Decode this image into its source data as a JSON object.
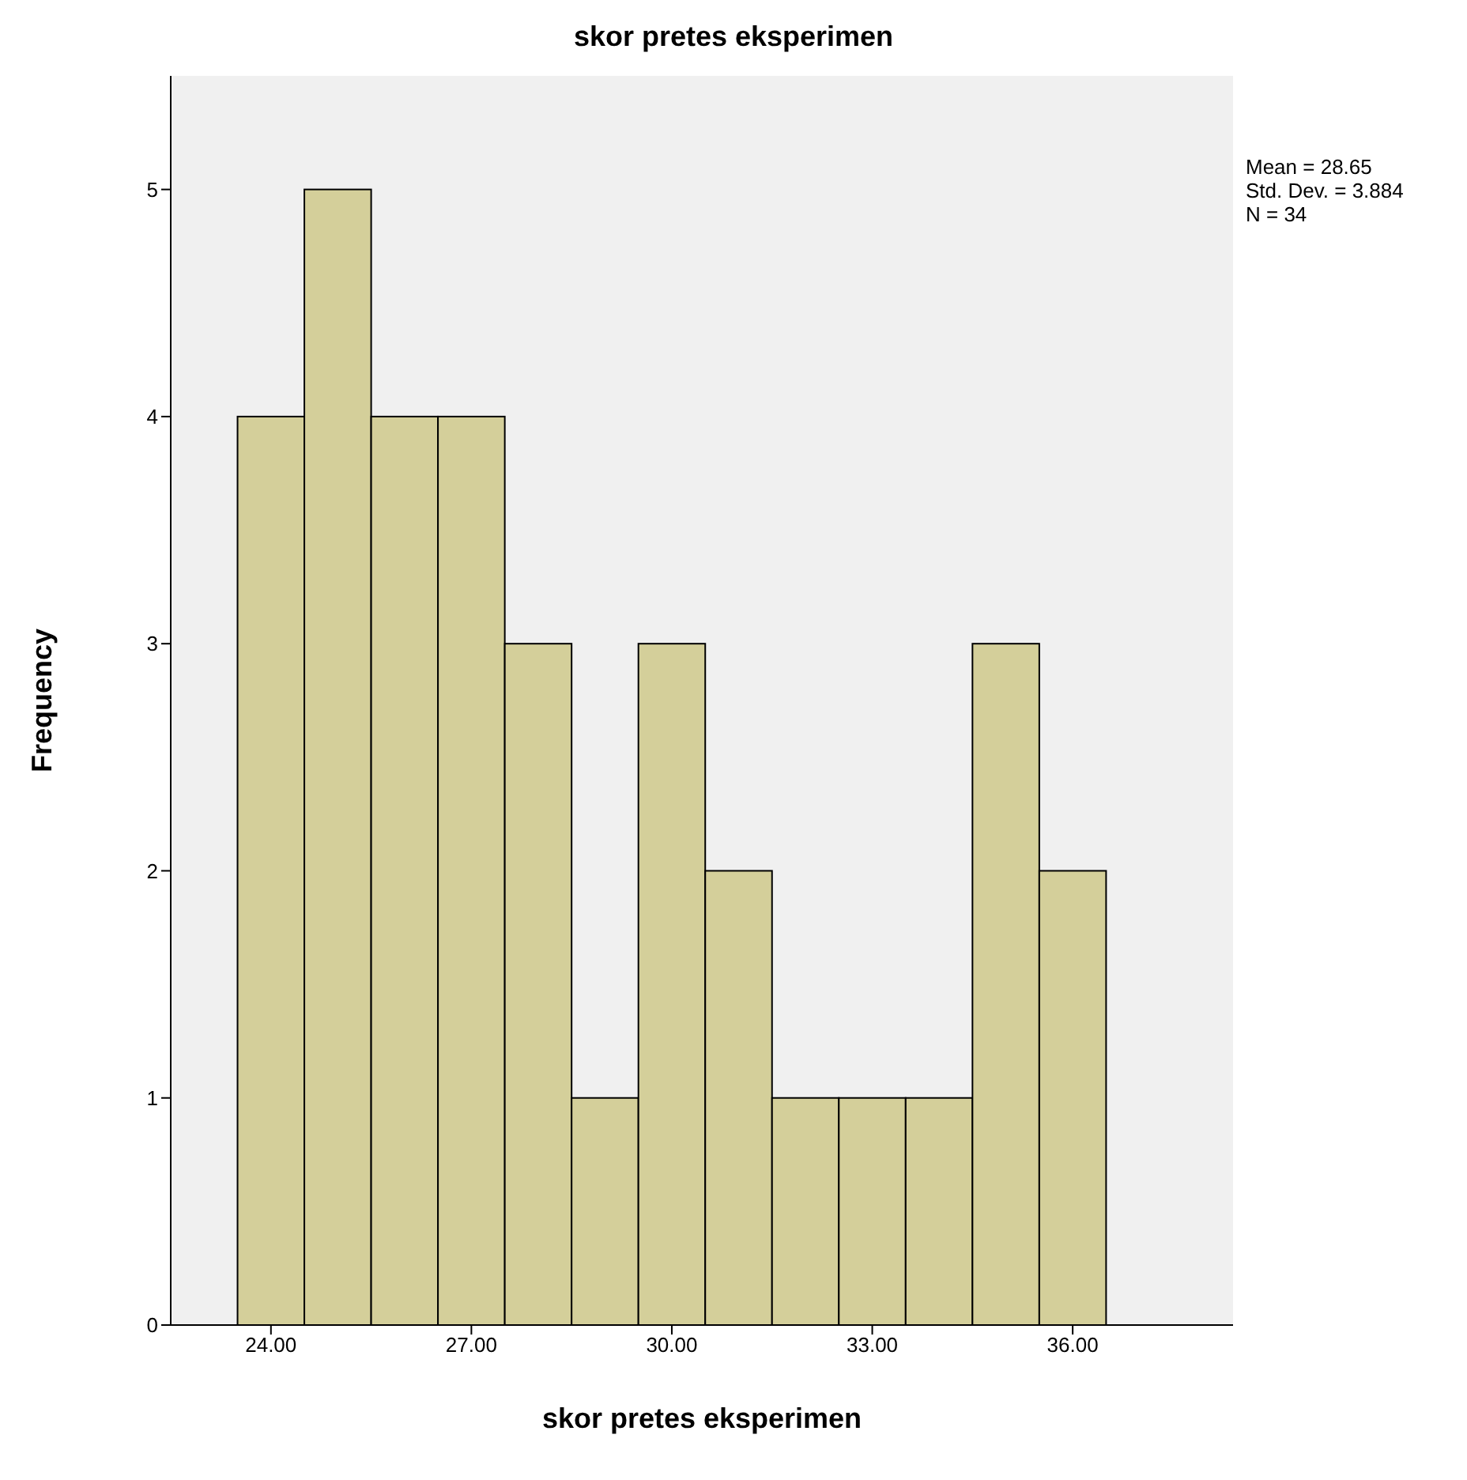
{
  "chart_data": {
    "type": "histogram",
    "title": "skor pretes eksperimen",
    "xlabel": "skor pretes eksperimen",
    "ylabel": "Frequency",
    "bins": [
      23.5,
      24.5,
      25.5,
      26.5,
      27.5,
      28.5,
      29.5,
      30.5,
      31.5,
      32.5,
      33.5,
      34.5,
      35.5,
      36.5
    ],
    "values": [
      4,
      5,
      4,
      4,
      3,
      1,
      3,
      2,
      1,
      1,
      1,
      3,
      2
    ],
    "color": "#d4cf9a",
    "xlim": [
      22.5,
      38.4
    ],
    "xticks": [
      {
        "value": 24,
        "label": "24.00"
      },
      {
        "value": 27,
        "label": "27.00"
      },
      {
        "value": 30,
        "label": "30.00"
      },
      {
        "value": 33,
        "label": "33.00"
      },
      {
        "value": 36,
        "label": "36.00"
      }
    ],
    "ylim": [
      0,
      5.5
    ],
    "yticks": [
      0,
      1,
      2,
      3,
      4,
      5
    ],
    "annotations": [
      "Mean = 28.65",
      "Std. Dev. = 3.884",
      "N = 34"
    ]
  }
}
